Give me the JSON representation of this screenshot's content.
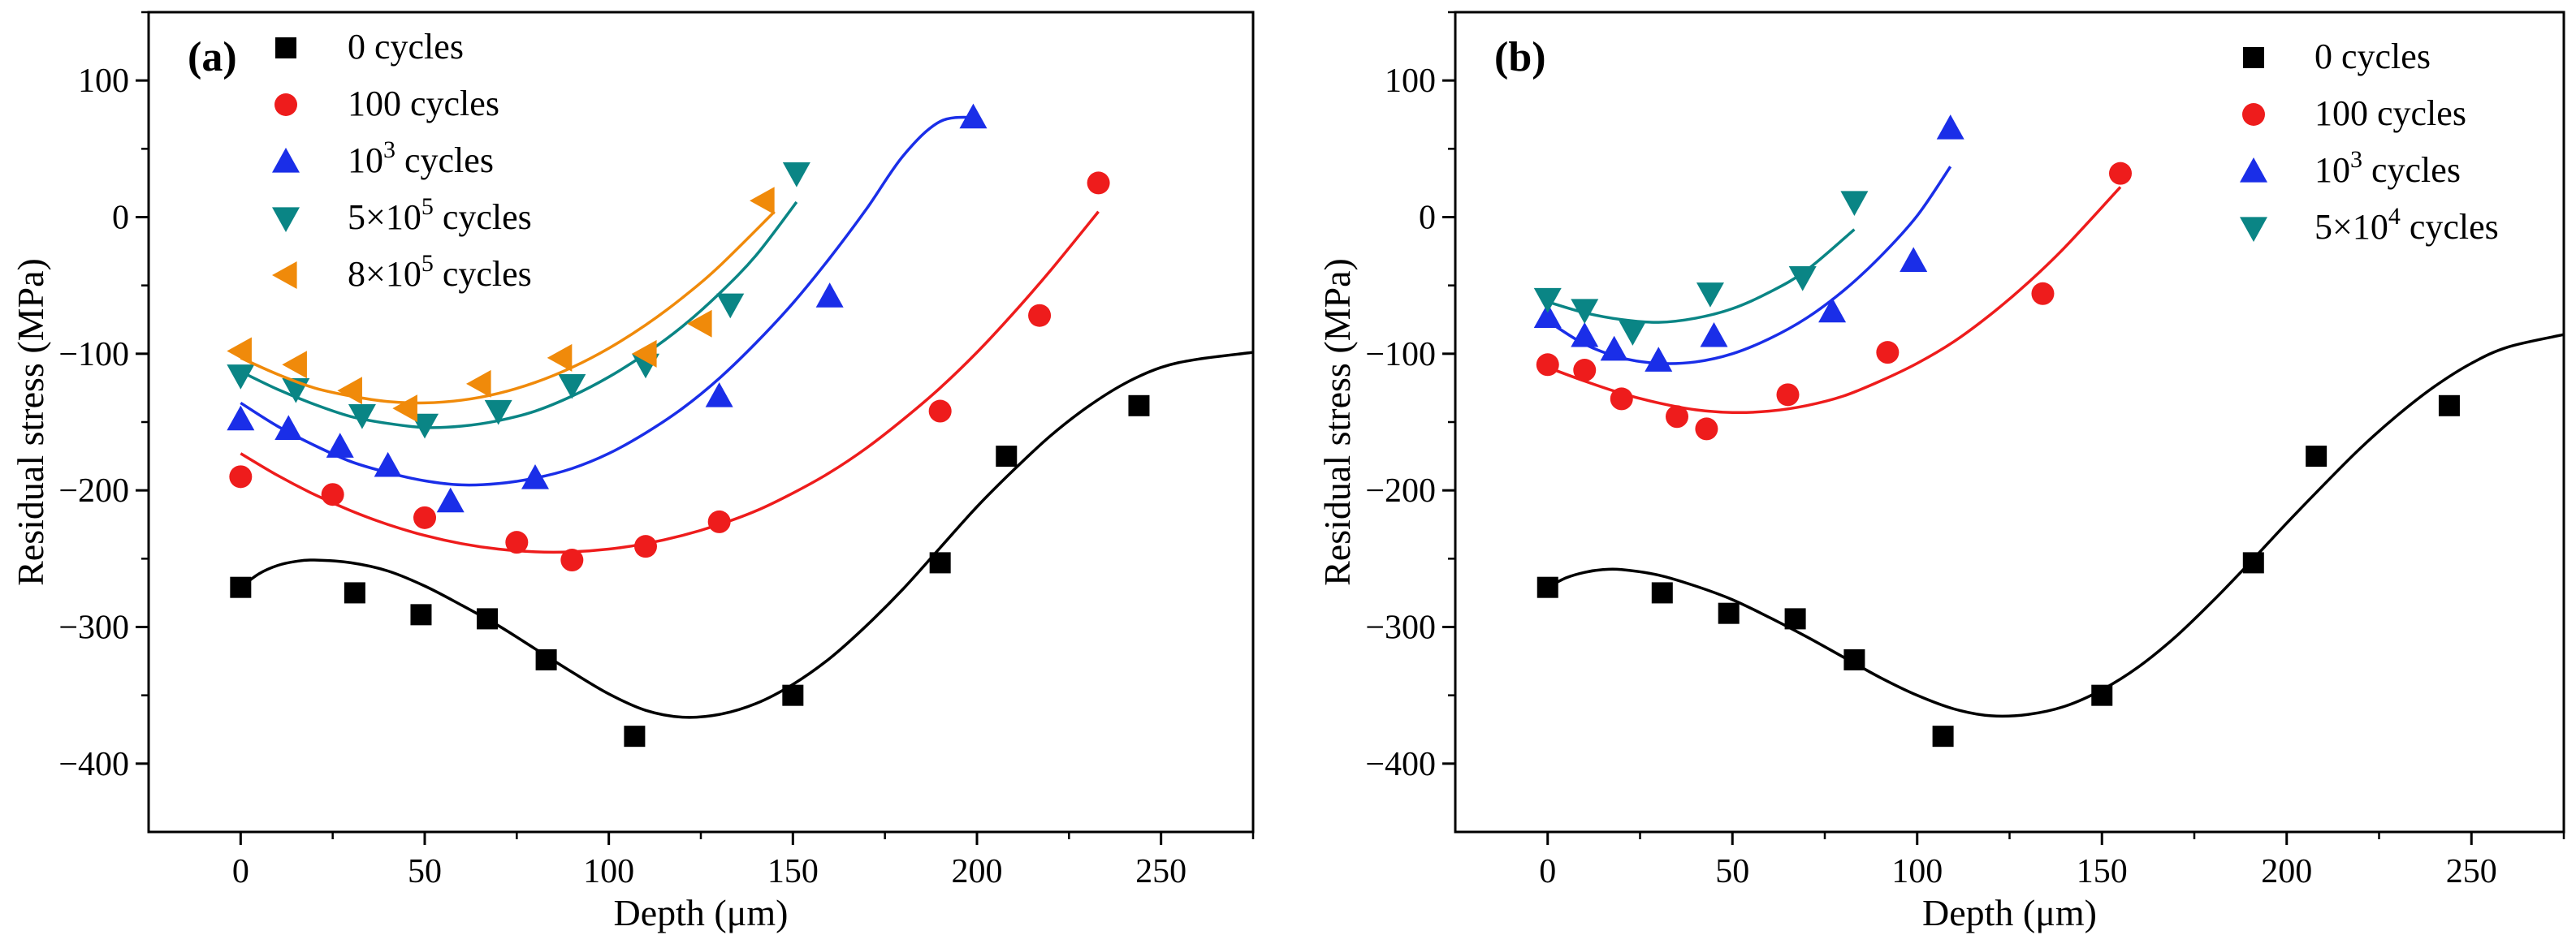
{
  "chart_data": [
    {
      "type": "scatter",
      "panel_label": "(a)",
      "xlabel": "Depth (μm)",
      "ylabel": "Residual stress (MPa)",
      "xlim": [
        -25,
        275
      ],
      "ylim": [
        -450,
        150
      ],
      "xticks": [
        0,
        50,
        100,
        150,
        200,
        250
      ],
      "yticks": [
        100,
        0,
        -100,
        -200,
        -300,
        -400
      ],
      "legend_position": "top-left",
      "series": [
        {
          "name": "0 cycles",
          "base": "0 cycles",
          "sup": "",
          "suffix": "",
          "marker": "square",
          "color": "#000000",
          "x": [
            0,
            31,
            49,
            67,
            83,
            107,
            150,
            190,
            208,
            244
          ],
          "y": [
            -271,
            -275,
            -291,
            -294,
            -324,
            -380,
            -350,
            -253,
            -175,
            -138
          ],
          "fit": {
            "x": [
              0,
              5,
              10,
              15,
              20,
              30,
              40,
              50,
              60,
              70,
              80,
              90,
              100,
              110,
              120,
              130,
              140,
              150,
              160,
              170,
              180,
              190,
              200,
              210,
              220,
              230,
              240,
              250,
              260,
              275
            ],
            "y": [
              -271,
              -261,
              -255,
              -252,
              -251,
              -253,
              -259,
              -270,
              -284,
              -299,
              -316,
              -333,
              -349,
              -361,
              -366,
              -364,
              -356,
              -342,
              -323,
              -299,
              -272,
              -242,
              -212,
              -185,
              -160,
              -139,
              -122,
              -110,
              -104,
              -99
            ]
          }
        },
        {
          "name": "100 cycles",
          "base": "100 cycles",
          "sup": "",
          "suffix": "",
          "marker": "circle",
          "color": "#ee1c1c",
          "x": [
            0,
            25,
            50,
            75,
            90,
            110,
            130,
            190,
            217,
            233
          ],
          "y": [
            -190,
            -203,
            -220,
            -238,
            -251,
            -241,
            -223,
            -142,
            -72,
            25
          ],
          "fit": {
            "x": [
              0,
              10,
              20,
              30,
              40,
              50,
              60,
              70,
              80,
              90,
              100,
              110,
              120,
              130,
              140,
              150,
              160,
              170,
              180,
              190,
              200,
              210,
              220,
              233
            ],
            "y": [
              -173,
              -189,
              -203,
              -215,
              -225,
              -233,
              -239,
              -243,
              -245,
              -245,
              -243,
              -239,
              -233,
              -225,
              -215,
              -202,
              -187,
              -169,
              -148,
              -125,
              -99,
              -70,
              -39,
              4
            ]
          }
        },
        {
          "name": "10³ cycles",
          "base": "10",
          "sup": "3",
          "suffix": " cycles",
          "marker": "triangle-up",
          "color": "#1a2ee8",
          "x": [
            0,
            13,
            27,
            40,
            57,
            80,
            130,
            160,
            199
          ],
          "y": [
            -148,
            -155,
            -168,
            -182,
            -208,
            -191,
            -131,
            -58,
            73
          ],
          "fit": {
            "x": [
              0,
              10,
              20,
              30,
              40,
              50,
              60,
              70,
              80,
              90,
              100,
              110,
              120,
              130,
              140,
              150,
              160,
              170,
              180,
              190,
              200
            ],
            "y": [
              -136,
              -153,
              -167,
              -179,
              -187,
              -193,
              -196,
              -195,
              -191,
              -184,
              -173,
              -158,
              -140,
              -118,
              -92,
              -63,
              -30,
              6,
              45,
              70,
              73
            ]
          }
        },
        {
          "name": "5×10⁵ cycles",
          "base": "5×10",
          "sup": "5",
          "suffix": " cycles",
          "marker": "triangle-down",
          "color": "#0a8585",
          "x": [
            0,
            15,
            33,
            50,
            70,
            90,
            110,
            133,
            151
          ],
          "y": [
            -116,
            -126,
            -145,
            -152,
            -142,
            -123,
            -108,
            -64,
            32
          ],
          "fit": {
            "x": [
              0,
              10,
              20,
              30,
              40,
              50,
              60,
              70,
              80,
              90,
              100,
              110,
              120,
              130,
              140,
              151
            ],
            "y": [
              -113,
              -126,
              -137,
              -146,
              -151,
              -154,
              -153,
              -149,
              -142,
              -131,
              -117,
              -100,
              -80,
              -56,
              -28,
              11
            ]
          }
        },
        {
          "name": "8×10⁵ cycles",
          "base": "8×10",
          "sup": "5",
          "suffix": " cycles",
          "marker": "triangle-left",
          "color": "#f08a0a",
          "x": [
            0,
            15,
            30,
            45,
            65,
            87,
            110,
            125,
            142
          ],
          "y": [
            -98,
            -108,
            -127,
            -140,
            -122,
            -103,
            -100,
            -78,
            12
          ],
          "fit": {
            "x": [
              0,
              10,
              20,
              30,
              40,
              50,
              60,
              70,
              80,
              90,
              100,
              110,
              120,
              130,
              145
            ],
            "y": [
              -103,
              -115,
              -125,
              -131,
              -135,
              -136,
              -134,
              -129,
              -121,
              -110,
              -96,
              -79,
              -59,
              -36,
              4
            ]
          }
        }
      ]
    },
    {
      "type": "scatter",
      "panel_label": "(b)",
      "xlabel": "Depth (μm)",
      "ylabel": "Residual stress (MPa)",
      "xlim": [
        -25,
        275
      ],
      "ylim": [
        -450,
        150
      ],
      "xticks": [
        0,
        50,
        100,
        150,
        200,
        250
      ],
      "yticks": [
        100,
        0,
        -100,
        -200,
        -300,
        -400
      ],
      "legend_position": "top-right",
      "series": [
        {
          "name": "0 cycles",
          "base": "0 cycles",
          "sup": "",
          "suffix": "",
          "marker": "square",
          "color": "#000000",
          "x": [
            0,
            31,
            49,
            67,
            83,
            107,
            150,
            191,
            208,
            244
          ],
          "y": [
            -271,
            -275,
            -290,
            -294,
            -324,
            -380,
            -350,
            -253,
            -175,
            -138
          ],
          "fit": {
            "x": [
              0,
              5,
              10,
              15,
              20,
              30,
              40,
              50,
              60,
              70,
              80,
              90,
              100,
              110,
              120,
              130,
              140,
              150,
              160,
              170,
              180,
              190,
              200,
              210,
              220,
              230,
              240,
              250,
              260,
              275
            ],
            "y": [
              -271,
              -264,
              -260,
              -258,
              -258,
              -262,
              -270,
              -280,
              -293,
              -307,
              -322,
              -337,
              -350,
              -360,
              -365,
              -364,
              -358,
              -346,
              -329,
              -307,
              -281,
              -253,
              -224,
              -196,
              -169,
              -145,
              -124,
              -107,
              -95,
              -86
            ]
          }
        },
        {
          "name": "100 cycles",
          "base": "100 cycles",
          "sup": "",
          "suffix": "",
          "marker": "circle",
          "color": "#ee1c1c",
          "x": [
            0,
            10,
            20,
            35,
            43,
            65,
            92,
            134,
            155
          ],
          "y": [
            -108,
            -112,
            -133,
            -146,
            -155,
            -130,
            -99,
            -56,
            32
          ],
          "fit": {
            "x": [
              0,
              10,
              20,
              30,
              40,
              50,
              60,
              70,
              80,
              90,
              100,
              110,
              120,
              130,
              140,
              155
            ],
            "y": [
              -110,
              -120,
              -129,
              -136,
              -141,
              -143,
              -142,
              -138,
              -131,
              -120,
              -107,
              -91,
              -71,
              -48,
              -22,
              22
            ]
          }
        },
        {
          "name": "10³ cycles",
          "base": "10",
          "sup": "3",
          "suffix": " cycles",
          "marker": "triangle-up",
          "color": "#1a2ee8",
          "x": [
            0,
            10,
            18,
            30,
            45,
            77,
            99,
            109
          ],
          "y": [
            -73,
            -87,
            -97,
            -105,
            -87,
            -69,
            -32,
            65
          ],
          "fit": {
            "x": [
              0,
              10,
              20,
              30,
              40,
              50,
              60,
              70,
              80,
              90,
              100,
              109
            ],
            "y": [
              -76,
              -93,
              -103,
              -107,
              -106,
              -100,
              -89,
              -74,
              -54,
              -29,
              1,
              37
            ]
          }
        },
        {
          "name": "5×10⁴ cycles",
          "base": "5×10",
          "sup": "4",
          "suffix": " cycles",
          "marker": "triangle-down",
          "color": "#0a8585",
          "x": [
            0,
            10,
            23,
            44,
            69,
            83
          ],
          "y": [
            -60,
            -68,
            -84,
            -56,
            -44,
            11
          ],
          "fit": {
            "x": [
              0,
              10,
              20,
              30,
              40,
              50,
              60,
              70,
              83
            ],
            "y": [
              -62,
              -70,
              -75,
              -77,
              -74,
              -67,
              -55,
              -39,
              -9
            ]
          }
        }
      ]
    }
  ]
}
